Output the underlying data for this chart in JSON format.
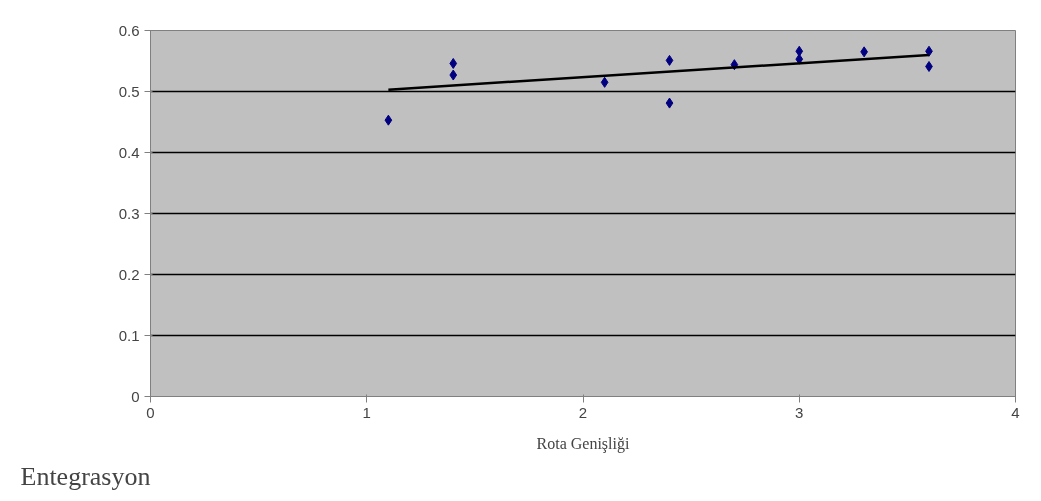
{
  "chart_data": {
    "type": "scatter",
    "xlabel": "Rota Genişliği",
    "ylabel": "Entegrasyon",
    "xlim": [
      0,
      4
    ],
    "xticks": [
      0,
      1,
      2,
      3,
      4
    ],
    "ylim": [
      0,
      0.6
    ],
    "yticks": [
      0,
      0.1,
      0.2,
      0.3,
      0.4,
      0.5,
      0.6
    ],
    "grid": "y",
    "marker": "diamond",
    "series": [
      {
        "color": "#000080",
        "x": [
          1.1,
          1.4,
          1.4,
          2.1,
          2.4,
          2.4,
          2.7,
          3.0,
          3.0,
          3.3,
          3.6,
          3.6
        ],
        "values": [
          0.453,
          0.546,
          0.527,
          0.515,
          0.551,
          0.481,
          0.544,
          0.566,
          0.553,
          0.565,
          0.566,
          0.541
        ]
      },
      {
        "type": "line",
        "marker": "none",
        "color": "#000000",
        "x": [
          1.1,
          3.6
        ],
        "values": [
          0.503,
          0.56
        ]
      }
    ]
  }
}
